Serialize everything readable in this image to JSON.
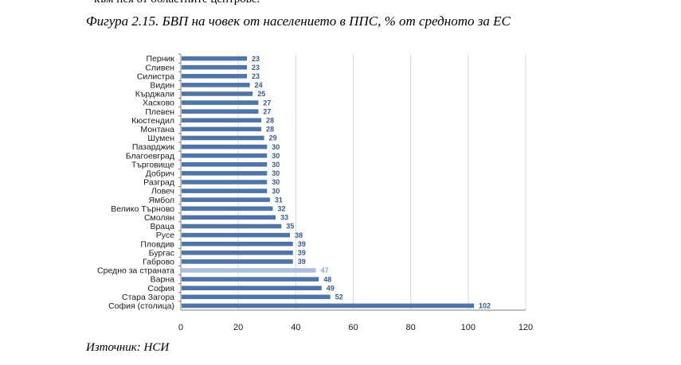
{
  "header_fragment": "към нея от областните центрове.",
  "figure_title": "Фигура 2.15. БВП на човек от населението в ППС, % от средното за ЕС",
  "source": "Източник: НСИ",
  "chart_data": {
    "type": "bar",
    "orientation": "horizontal",
    "categories": [
      "Перник",
      "Сливен",
      "Силистра",
      "Видин",
      "Кърджали",
      "Хасково",
      "Плевен",
      "Кюстендил",
      "Монтана",
      "Шумен",
      "Пазарджик",
      "Благоевград",
      "Търговище",
      "Добрич",
      "Разград",
      "Ловеч",
      "Ямбол",
      "Велико Търново",
      "Смолян",
      "Враца",
      "Русе",
      "Пловдив",
      "Бургас",
      "Габрово",
      "Средно за страната",
      "Варна",
      "София",
      "Стара Загора",
      "София (столица)"
    ],
    "values": [
      23,
      23,
      23,
      24,
      25,
      27,
      27,
      28,
      28,
      29,
      30,
      30,
      30,
      30,
      30,
      30,
      31,
      32,
      33,
      35,
      38,
      39,
      39,
      39,
      47,
      48,
      49,
      52,
      102
    ],
    "highlight_category": "Средно за страната",
    "xlim": [
      0,
      120
    ],
    "xticks": [
      0,
      20,
      40,
      60,
      80,
      100,
      120
    ],
    "grid": true,
    "colors": {
      "bar": "#4f74a8",
      "highlight_bar": "#a9bedb",
      "grid": "#d9d9d9",
      "axis": "#7f7f7f"
    }
  }
}
